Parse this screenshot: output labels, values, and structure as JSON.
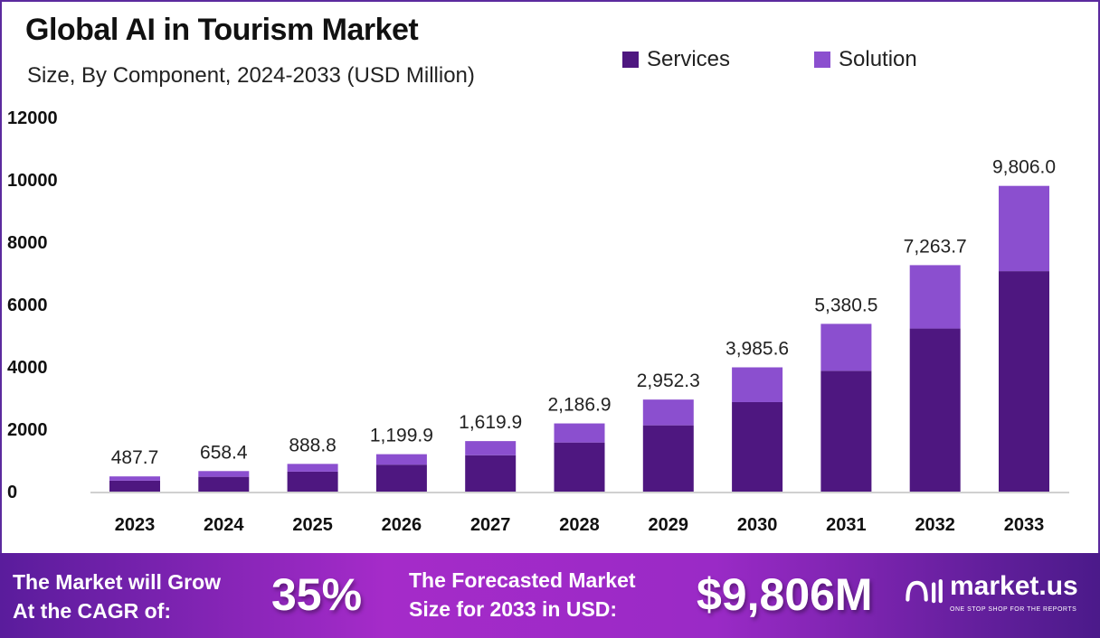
{
  "chart_data": {
    "type": "bar",
    "stacked": true,
    "title": "Global AI in Tourism Market",
    "subtitle": "Size, By Component, 2024-2033 (USD Million)",
    "xlabel": "",
    "ylabel": "",
    "ylim": [
      0,
      12000
    ],
    "yticks": [
      0,
      2000,
      4000,
      6000,
      8000,
      10000,
      12000
    ],
    "grid": false,
    "legend_position": "top-right",
    "categories": [
      "2023",
      "2024",
      "2025",
      "2026",
      "2027",
      "2028",
      "2029",
      "2030",
      "2031",
      "2032",
      "2033"
    ],
    "series": [
      {
        "name": "Services",
        "color": "#4e1780",
        "values": [
          351,
          474,
          640,
          864,
          1166,
          1575,
          2126,
          2870,
          3874,
          5230,
          7070
        ]
      },
      {
        "name": "Solution",
        "color": "#8b4fcf",
        "values": [
          136.7,
          184.4,
          248.8,
          335.9,
          453.9,
          611.9,
          826.3,
          1115.6,
          1506.5,
          2033.7,
          2736.0
        ]
      }
    ],
    "totals": [
      487.7,
      658.4,
      888.8,
      1199.9,
      1619.9,
      2186.9,
      2952.3,
      3985.6,
      5380.5,
      7263.7,
      9806.0
    ],
    "total_labels": [
      "487.7",
      "658.4",
      "888.8",
      "1,199.9",
      "1,619.9",
      "2,186.9",
      "2,952.3",
      "3,985.6",
      "5,380.5",
      "7,263.7",
      "9,806.0"
    ]
  },
  "banner": {
    "cagr_label_line1": "The Market will Grow",
    "cagr_label_line2": "At the CAGR of:",
    "cagr_value": "35%",
    "forecast_label_line1": "The Forecasted Market",
    "forecast_label_line2": "Size for 2033 in USD:",
    "forecast_value": "$9,806M",
    "logo_name": "market.us",
    "logo_tagline": "ONE STOP SHOP FOR THE REPORTS"
  }
}
